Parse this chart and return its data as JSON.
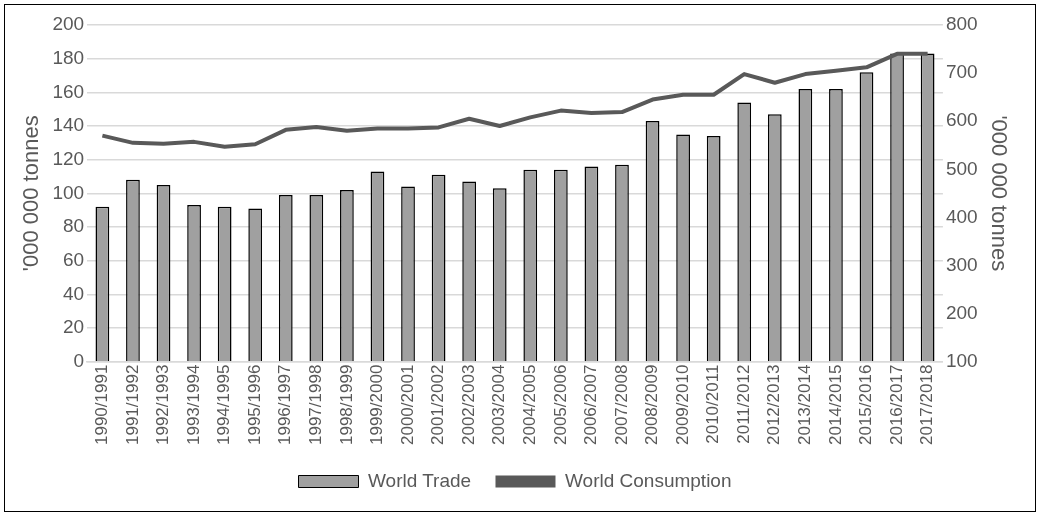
{
  "chart_data": {
    "type": "bar",
    "categories": [
      "1990/1991",
      "1991/1992",
      "1992/1993",
      "1993/1994",
      "1994/1995",
      "1995/1996",
      "1996/1997",
      "1997/1998",
      "1998/1999",
      "1999/2000",
      "2000/2001",
      "2001/2002",
      "2002/2003",
      "2003/2004",
      "2004/2005",
      "2005/2006",
      "2006/2007",
      "2007/2008",
      "2008/2009",
      "2009/2010",
      "2010/2011",
      "2011/2012",
      "2012/2013",
      "2013/2014",
      "2014/2015",
      "2015/2016",
      "2016/2017",
      "2017/2018"
    ],
    "series": [
      {
        "name": "World Trade",
        "color": "#a0a0a0",
        "values": [
          92,
          108,
          105,
          93,
          92,
          91,
          99,
          99,
          102,
          113,
          104,
          111,
          107,
          103,
          114,
          114,
          116,
          117,
          143,
          135,
          134,
          154,
          147,
          162,
          162,
          172,
          183,
          183
        ]
      },
      {
        "name": "World Consumption",
        "type": "line",
        "axis": "y2",
        "color": "#595959",
        "values": [
          570,
          555,
          553,
          557,
          547,
          552,
          582,
          588,
          580,
          585,
          585,
          587,
          605,
          590,
          608,
          622,
          617,
          619,
          645,
          655,
          655,
          698,
          680,
          698,
          705,
          712,
          740,
          740
        ]
      }
    ],
    "ylabel": "'000 000 tonnes",
    "y2label": "'000 000 tonnes",
    "ylim": [
      0,
      200
    ],
    "yticks": [
      0,
      20,
      40,
      60,
      80,
      100,
      120,
      140,
      160,
      180,
      200
    ],
    "y2lim": [
      100,
      800
    ],
    "y2ticks": [
      100,
      200,
      300,
      400,
      500,
      600,
      700,
      800
    ],
    "grid": "y",
    "legend": "bottom",
    "marker": "none",
    "line_style": "solid"
  }
}
